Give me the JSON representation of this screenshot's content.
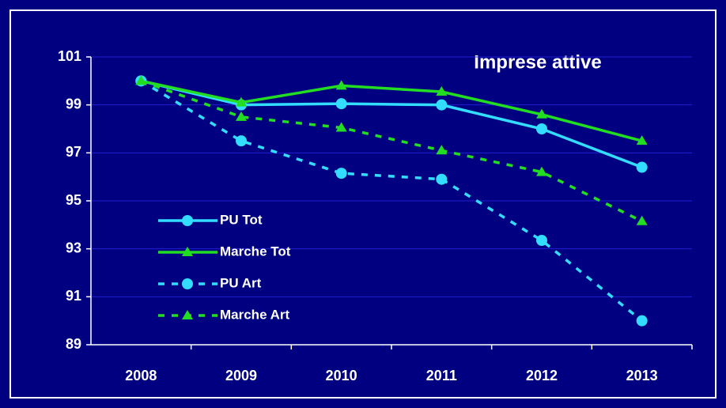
{
  "chart_data": {
    "type": "line",
    "title": "Imprese attive",
    "categories": [
      "2008",
      "2009",
      "2010",
      "2011",
      "2012",
      "2013"
    ],
    "series": [
      {
        "name": "PU Tot",
        "color": "#33ddff",
        "marker": "circle",
        "dashed": false,
        "values": [
          100,
          99.0,
          99.05,
          99.0,
          98.0,
          96.4
        ]
      },
      {
        "name": "Marche Tot",
        "color": "#22dd22",
        "marker": "triangle",
        "dashed": false,
        "values": [
          100,
          99.1,
          99.8,
          99.55,
          98.6,
          97.5
        ]
      },
      {
        "name": "PU Art",
        "color": "#33ddff",
        "marker": "circle",
        "dashed": true,
        "values": [
          100,
          97.5,
          96.15,
          95.9,
          93.35,
          90.0
        ]
      },
      {
        "name": "Marche Art",
        "color": "#22dd22",
        "marker": "triangle",
        "dashed": true,
        "values": [
          100,
          98.5,
          98.05,
          97.1,
          96.2,
          94.15
        ]
      }
    ],
    "ylim": [
      89,
      101
    ],
    "yticks": [
      89,
      91,
      93,
      95,
      97,
      99,
      101
    ],
    "grid": true,
    "legend": "left"
  }
}
